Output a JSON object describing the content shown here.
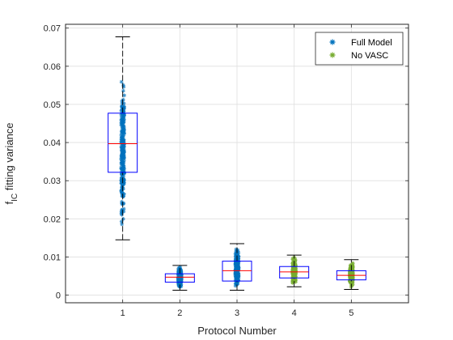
{
  "chart_data": {
    "type": "boxplot",
    "title": "",
    "xlabel": "Protocol Number",
    "ylabel_main": "f",
    "ylabel_sub": "IC",
    "ylabel_rest": " fitting variance",
    "categories": [
      "1",
      "2",
      "3",
      "4",
      "5"
    ],
    "xlim": [
      0,
      6
    ],
    "ylim": [
      -0.002,
      0.071
    ],
    "yticks": [
      0,
      0.01,
      0.02,
      0.03,
      0.04,
      0.05,
      0.06,
      0.07
    ],
    "ytick_labels": [
      "0",
      "0.01",
      "0.02",
      "0.03",
      "0.04",
      "0.05",
      "0.06",
      "0.07"
    ],
    "grid": true,
    "legend_position": "top-right",
    "boxes": [
      {
        "category": "1",
        "whisker_low": 0.0145,
        "q1": 0.0322,
        "median": 0.0397,
        "q3": 0.0477,
        "whisker_high": 0.0677,
        "series": "Full Model",
        "points_min": 0.0158,
        "points_max": 0.0605
      },
      {
        "category": "2",
        "whisker_low": 0.0013,
        "q1": 0.0034,
        "median": 0.0047,
        "q3": 0.0056,
        "whisker_high": 0.0078,
        "series": "Full Model",
        "points_min": 0.0015,
        "points_max": 0.0076
      },
      {
        "category": "3",
        "whisker_low": 0.0013,
        "q1": 0.0037,
        "median": 0.0064,
        "q3": 0.0089,
        "whisker_high": 0.0135,
        "series": "Full Model",
        "points_min": 0.0015,
        "points_max": 0.0132
      },
      {
        "category": "4",
        "whisker_low": 0.0022,
        "q1": 0.0045,
        "median": 0.0061,
        "q3": 0.0075,
        "whisker_high": 0.0105,
        "series": "No VASC",
        "points_min": 0.0024,
        "points_max": 0.0103
      },
      {
        "category": "5",
        "whisker_low": 0.0015,
        "q1": 0.004,
        "median": 0.0052,
        "q3": 0.0064,
        "whisker_high": 0.0093,
        "series": "No VASC",
        "points_min": 0.0017,
        "points_max": 0.0091
      }
    ],
    "series": [
      {
        "name": "Full Model",
        "color": "#0072BD"
      },
      {
        "name": "No VASC",
        "color": "#77AC30"
      }
    ],
    "colors": {
      "box": "#0000FF",
      "median": "#FF0000",
      "whisker": "#000000",
      "grid": "#DFDFDF",
      "axis": "#262626"
    }
  }
}
